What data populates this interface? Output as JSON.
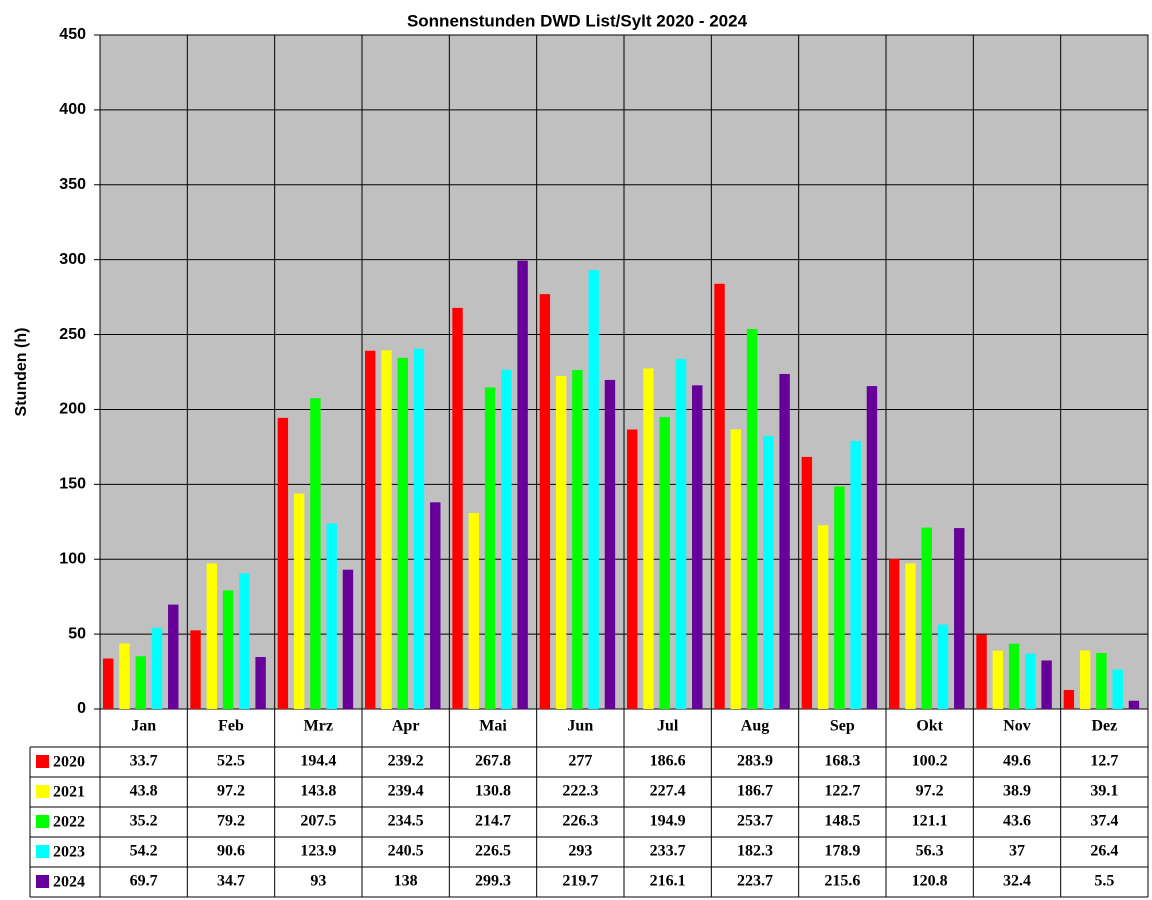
{
  "chart_data": {
    "type": "bar",
    "title": "Sonnenstunden DWD List/Sylt 2020 - 2024",
    "y_label": "Stunden (h)",
    "categories": [
      "Jan",
      "Feb",
      "Mrz",
      "Apr",
      "Mai",
      "Jun",
      "Jul",
      "Aug",
      "Sep",
      "Okt",
      "Nov",
      "Dez"
    ],
    "series": [
      {
        "name": "2020",
        "color": "#ff0000",
        "values": [
          33.7,
          52.5,
          194.4,
          239.2,
          267.8,
          277,
          186.6,
          283.9,
          168.3,
          100.2,
          49.6,
          12.7
        ]
      },
      {
        "name": "2021",
        "color": "#ffff00",
        "values": [
          43.8,
          97.2,
          143.8,
          239.4,
          130.8,
          222.3,
          227.4,
          186.7,
          122.7,
          97.2,
          38.9,
          39.1
        ]
      },
      {
        "name": "2022",
        "color": "#00ff00",
        "values": [
          35.2,
          79.2,
          207.5,
          234.5,
          214.7,
          226.3,
          194.9,
          253.7,
          148.5,
          121.1,
          43.6,
          37.4
        ]
      },
      {
        "name": "2023",
        "color": "#00ffff",
        "values": [
          54.2,
          90.6,
          123.9,
          240.5,
          226.5,
          293,
          233.7,
          182.3,
          178.9,
          56.3,
          37,
          26.4
        ]
      },
      {
        "name": "2024",
        "color": "#660099",
        "values": [
          69.7,
          34.7,
          93,
          138,
          299.3,
          219.7,
          216.1,
          223.7,
          215.6,
          120.8,
          32.4,
          5.5
        ]
      }
    ],
    "ylim": [
      0,
      450
    ],
    "yticks": [
      0,
      50,
      100,
      150,
      200,
      250,
      300,
      350,
      400,
      450
    ],
    "grid": true
  }
}
